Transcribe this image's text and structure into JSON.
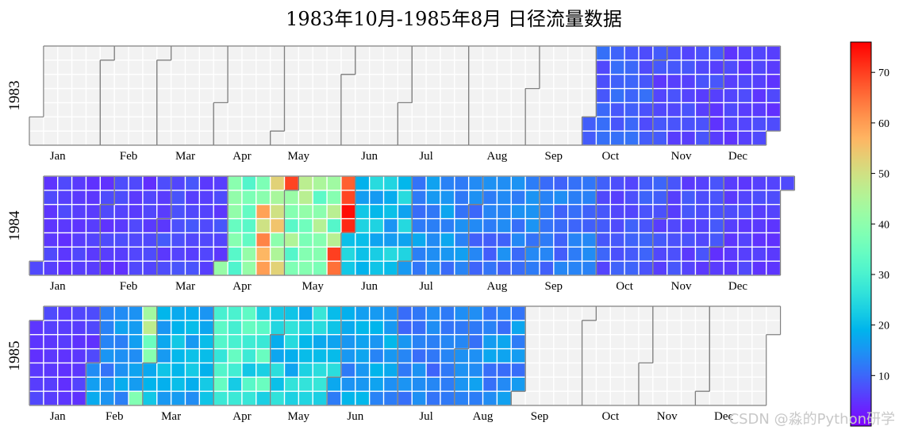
{
  "chart_data": {
    "type": "heatmap",
    "title": "1983年10月-1985年8月 日径流量数据",
    "years": [
      "1983",
      "1984",
      "1985"
    ],
    "month_labels": [
      "Jan",
      "Feb",
      "Mar",
      "Apr",
      "May",
      "Jun",
      "Jul",
      "Aug",
      "Sep",
      "Oct",
      "Nov",
      "Dec"
    ],
    "date_range": [
      "1983-10-01",
      "1985-08-31"
    ],
    "colormap": "rainbow",
    "colorbar": {
      "min": 0,
      "max": 76,
      "ticks": [
        10,
        20,
        30,
        40,
        50,
        60,
        70
      ]
    },
    "monthly_flow_estimate": {
      "1983": {
        "Oct": 9,
        "Nov": 7,
        "Dec": 6
      },
      "1984": {
        "Jan": 6,
        "Feb": 6,
        "Mar": 7,
        "Apr": 35,
        "May": 38,
        "Jun": 20,
        "Jul": 14,
        "Aug": 12,
        "Sep": 12,
        "Oct": 8,
        "Nov": 7,
        "Dec": 6
      },
      "1985": {
        "Jan": 6,
        "Feb": 15,
        "Mar": 18,
        "Apr": 28,
        "May": 22,
        "Jun": 16,
        "Jul": 13,
        "Aug": 14
      }
    },
    "empty_color": "#f2f2f2"
  },
  "watermark": "CSDN @淼的Python研学"
}
